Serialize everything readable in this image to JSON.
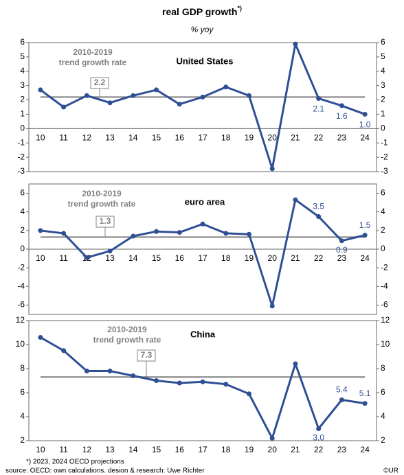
{
  "title": "real GDP growth",
  "title_note": "*)",
  "subtitle": "% yoy",
  "footnote": "*) 2023, 2024 OECD  projections",
  "source": "source: OECD:  own calculations. desion & research: Uwe Richter",
  "credit": "©UR",
  "chart_data": [
    {
      "type": "line",
      "title": "United States",
      "categories": [
        "10",
        "11",
        "12",
        "13",
        "14",
        "15",
        "16",
        "17",
        "18",
        "19",
        "20",
        "21",
        "22",
        "23",
        "24"
      ],
      "values": [
        2.7,
        1.5,
        2.3,
        1.8,
        2.3,
        2.7,
        1.7,
        2.2,
        2.9,
        2.3,
        -2.8,
        5.9,
        2.1,
        1.6,
        1.0
      ],
      "value_labels": [
        null,
        null,
        null,
        null,
        null,
        null,
        null,
        null,
        null,
        null,
        null,
        null,
        "2.1",
        "1.6",
        "1.0"
      ],
      "color": "#2f4f94",
      "trend": {
        "label": [
          "2010-2019",
          "trend growth rate"
        ],
        "value": 2.2,
        "color": "#808080"
      },
      "ylim": [
        -3,
        6
      ],
      "yticks": [
        -3,
        -2,
        -1,
        0,
        1,
        2,
        3,
        4,
        5,
        6
      ],
      "grid": false
    },
    {
      "type": "line",
      "title": "euro area",
      "categories": [
        "10",
        "11",
        "12",
        "13",
        "14",
        "15",
        "16",
        "17",
        "18",
        "19",
        "20",
        "21",
        "22",
        "23",
        "24"
      ],
      "values": [
        2.0,
        1.7,
        -0.9,
        -0.2,
        1.4,
        1.9,
        1.8,
        2.7,
        1.7,
        1.6,
        -6.1,
        5.3,
        3.5,
        0.9,
        1.5
      ],
      "value_labels": [
        null,
        null,
        null,
        null,
        null,
        null,
        null,
        null,
        null,
        null,
        null,
        null,
        "3.5",
        "0.9",
        "1.5"
      ],
      "color": "#2f4f94",
      "trend": {
        "label": [
          "2010-2019",
          "trend growth rate"
        ],
        "value": 1.3,
        "color": "#808080"
      },
      "ylim": [
        -7,
        7
      ],
      "yticks": [
        -6,
        -4,
        -2,
        0,
        2,
        4,
        6
      ],
      "grid": false
    },
    {
      "type": "line",
      "title": "China",
      "categories": [
        "10",
        "11",
        "12",
        "13",
        "14",
        "15",
        "16",
        "17",
        "18",
        "19",
        "20",
        "21",
        "22",
        "23",
        "24"
      ],
      "values": [
        10.6,
        9.5,
        7.8,
        7.8,
        7.4,
        7.0,
        6.8,
        6.9,
        6.7,
        5.9,
        2.2,
        8.4,
        3.0,
        5.4,
        5.1
      ],
      "value_labels": [
        null,
        null,
        null,
        null,
        null,
        null,
        null,
        null,
        null,
        null,
        null,
        null,
        "3.0",
        "5.4",
        "5.1"
      ],
      "color": "#2f4f94",
      "trend": {
        "label": [
          "2010-2019",
          "trend growth rate"
        ],
        "value": 7.3,
        "color": "#808080"
      },
      "ylim": [
        2,
        12
      ],
      "yticks": [
        2,
        4,
        6,
        8,
        10,
        12
      ],
      "grid": false
    }
  ]
}
